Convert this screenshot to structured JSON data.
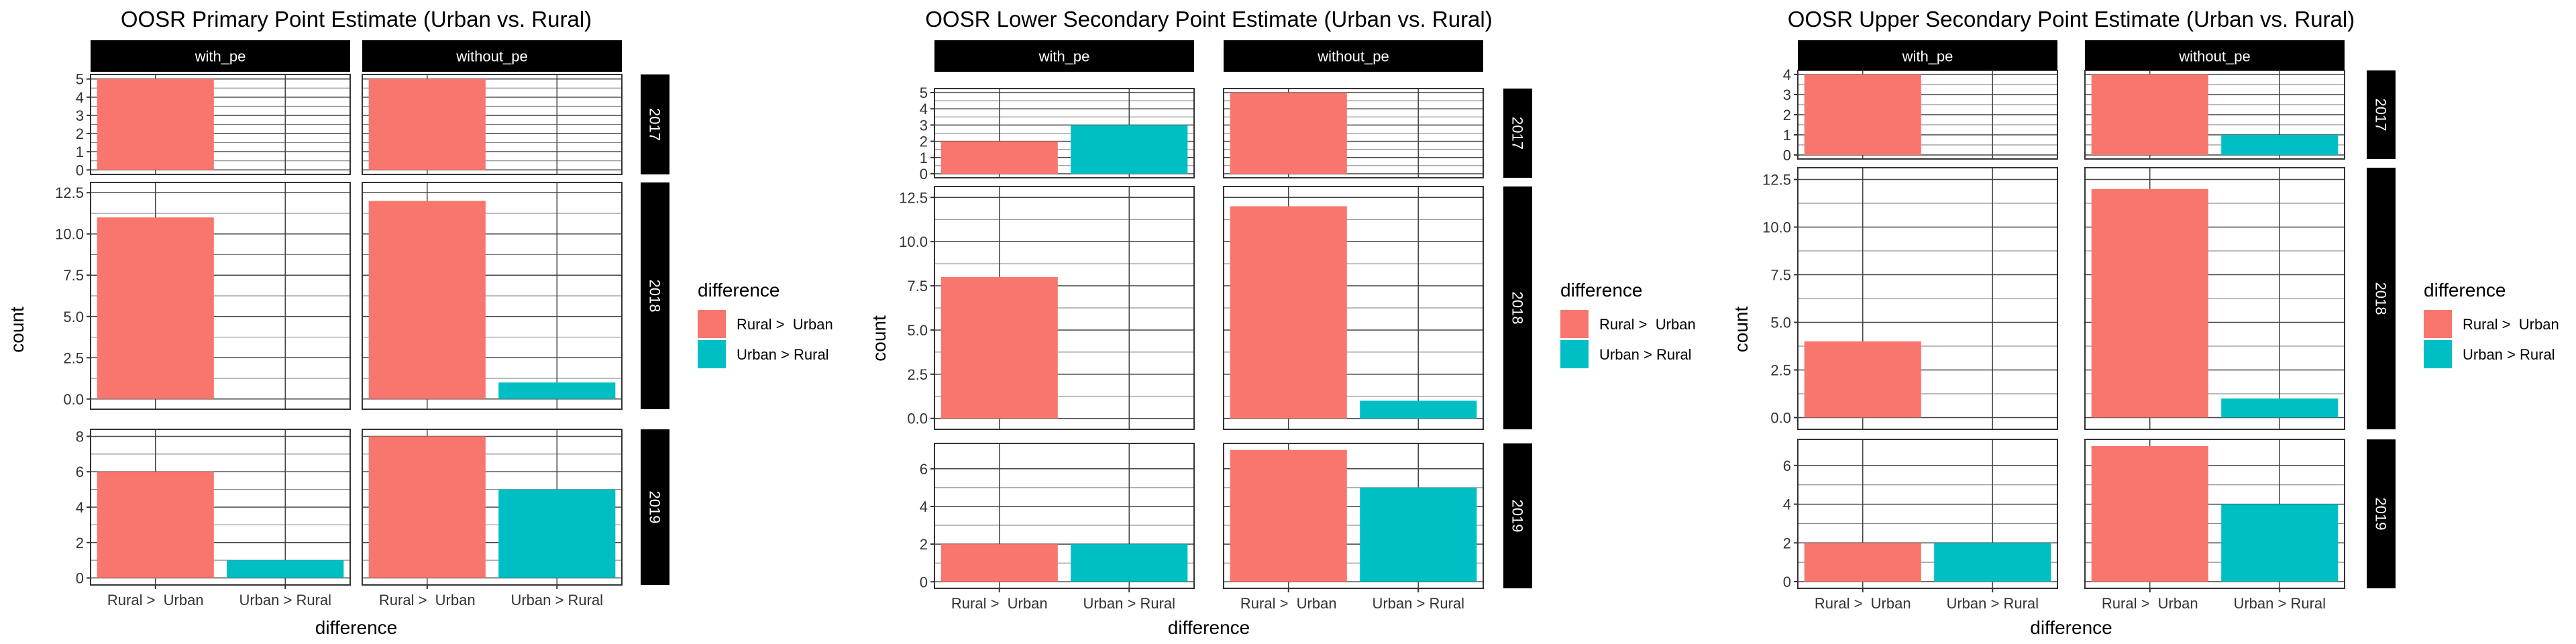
{
  "chart_data": [
    {
      "type": "bar",
      "title": "OOSR Primary Point Estimate (Urban vs. Rural)",
      "xlabel": "difference",
      "ylabel": "count",
      "categories": [
        "Rural >  Urban",
        "Urban > Rural"
      ],
      "columns": [
        "with_pe",
        "without_pe"
      ],
      "legend": {
        "title": "difference",
        "position": "right",
        "entries": [
          "Rural >  Urban",
          "Urban > Rural"
        ]
      },
      "colors": [
        "#F8766D",
        "#00BFC4"
      ],
      "grid": true,
      "rows": [
        {
          "label": "2017",
          "ylim": [
            0,
            5
          ],
          "ticks": [
            "0",
            "1",
            "2",
            "3",
            "4",
            "5"
          ],
          "panels": [
            {
              "column": "with_pe",
              "values": [
                5,
                0
              ]
            },
            {
              "column": "without_pe",
              "values": [
                5,
                0
              ]
            }
          ]
        },
        {
          "label": "2018",
          "ylim": [
            0,
            12.5
          ],
          "ticks": [
            "0.0",
            "2.5",
            "5.0",
            "7.5",
            "10.0",
            "12.5"
          ],
          "panels": [
            {
              "column": "with_pe",
              "values": [
                11,
                0
              ]
            },
            {
              "column": "without_pe",
              "values": [
                12,
                1
              ]
            }
          ]
        },
        {
          "label": "2019",
          "ylim": [
            0,
            8
          ],
          "ticks": [
            "0",
            "2",
            "4",
            "6",
            "8"
          ],
          "panels": [
            {
              "column": "with_pe",
              "values": [
                6,
                1
              ]
            },
            {
              "column": "without_pe",
              "values": [
                8,
                5
              ]
            }
          ]
        }
      ]
    },
    {
      "type": "bar",
      "title": "OOSR Lower Secondary Point Estimate (Urban vs. Rural)",
      "xlabel": "difference",
      "ylabel": "count",
      "categories": [
        "Rural >  Urban",
        "Urban > Rural"
      ],
      "columns": [
        "with_pe",
        "without_pe"
      ],
      "legend": {
        "title": "difference",
        "position": "right",
        "entries": [
          "Rural >  Urban",
          "Urban > Rural"
        ]
      },
      "colors": [
        "#F8766D",
        "#00BFC4"
      ],
      "grid": true,
      "rows": [
        {
          "label": "2017",
          "ylim": [
            0,
            5
          ],
          "ticks": [
            "0",
            "1",
            "2",
            "3",
            "4",
            "5"
          ],
          "panels": [
            {
              "column": "with_pe",
              "values": [
                2,
                3
              ]
            },
            {
              "column": "without_pe",
              "values": [
                5,
                0
              ]
            }
          ]
        },
        {
          "label": "2018",
          "ylim": [
            0,
            12.5
          ],
          "ticks": [
            "0.0",
            "2.5",
            "5.0",
            "7.5",
            "10.0",
            "12.5"
          ],
          "panels": [
            {
              "column": "with_pe",
              "values": [
                8,
                0
              ]
            },
            {
              "column": "without_pe",
              "values": [
                12,
                1
              ]
            }
          ]
        },
        {
          "label": "2019",
          "ylim": [
            0,
            7
          ],
          "ticks": [
            "0",
            "2",
            "4",
            "6"
          ],
          "panels": [
            {
              "column": "with_pe",
              "values": [
                2,
                2
              ]
            },
            {
              "column": "without_pe",
              "values": [
                7,
                5
              ]
            }
          ]
        }
      ]
    },
    {
      "type": "bar",
      "title": "OOSR Upper Secondary Point Estimate (Urban vs. Rural)",
      "xlabel": "difference",
      "ylabel": "count",
      "categories": [
        "Rural >  Urban",
        "Urban > Rural"
      ],
      "columns": [
        "with_pe",
        "without_pe"
      ],
      "legend": {
        "title": "difference",
        "position": "right",
        "entries": [
          "Rural >  Urban",
          "Urban > Rural"
        ]
      },
      "colors": [
        "#F8766D",
        "#00BFC4"
      ],
      "grid": true,
      "rows": [
        {
          "label": "2017",
          "ylim": [
            0,
            4
          ],
          "ticks": [
            "0",
            "1",
            "2",
            "3",
            "4"
          ],
          "panels": [
            {
              "column": "with_pe",
              "values": [
                4,
                0
              ]
            },
            {
              "column": "without_pe",
              "values": [
                4,
                1
              ]
            }
          ]
        },
        {
          "label": "2018",
          "ylim": [
            0,
            12.5
          ],
          "ticks": [
            "0.0",
            "2.5",
            "5.0",
            "7.5",
            "10.0",
            "12.5"
          ],
          "panels": [
            {
              "column": "with_pe",
              "values": [
                4,
                0
              ]
            },
            {
              "column": "without_pe",
              "values": [
                12,
                1
              ]
            }
          ]
        },
        {
          "label": "2019",
          "ylim": [
            0,
            7
          ],
          "ticks": [
            "0",
            "2",
            "4",
            "6"
          ],
          "panels": [
            {
              "column": "with_pe",
              "values": [
                2,
                2
              ]
            },
            {
              "column": "without_pe",
              "values": [
                7,
                4
              ]
            }
          ]
        }
      ]
    }
  ]
}
